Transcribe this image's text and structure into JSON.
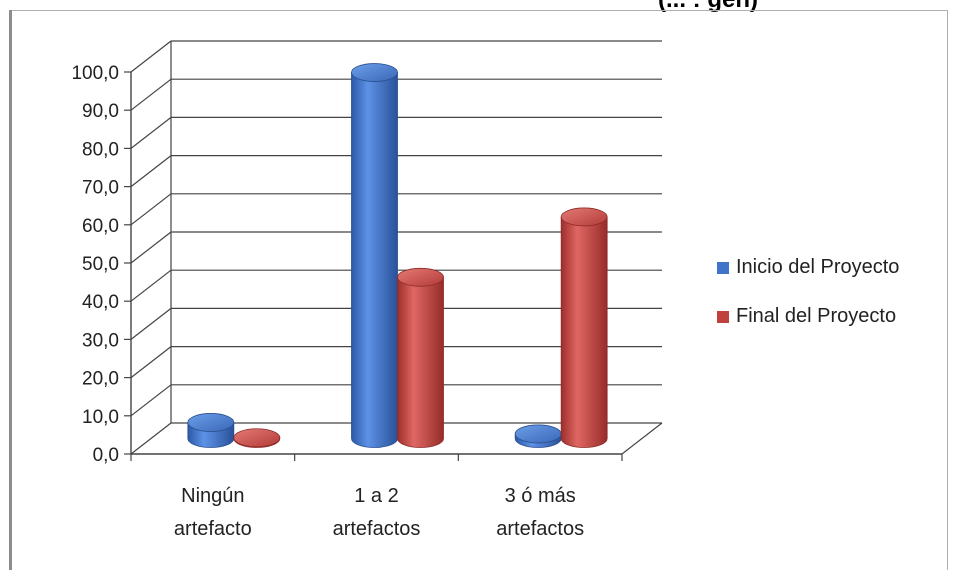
{
  "header": {
    "title_fragment": "(... : gen)"
  },
  "chart_data": {
    "type": "bar",
    "title": "",
    "xlabel": "",
    "ylabel": "",
    "ylim": [
      0,
      100
    ],
    "yticks": [
      "0,0",
      "10,0",
      "20,0",
      "30,0",
      "40,0",
      "50,0",
      "60,0",
      "70,0",
      "80,0",
      "90,0",
      "100,0"
    ],
    "categories": [
      [
        "Ningún",
        "artefacto"
      ],
      [
        "1 a 2",
        "artefactos"
      ],
      [
        "3 ó más",
        "artefactos"
      ]
    ],
    "series": [
      {
        "name": "Inicio del Proyecto",
        "color": "#3f74c8",
        "values": [
          4.2,
          95.8,
          1.2
        ]
      },
      {
        "name": "Final del Proyecto",
        "color": "#c0403d",
        "values": [
          0.2,
          42.2,
          58.0
        ]
      }
    ],
    "grid": true,
    "legend_position": "right"
  }
}
